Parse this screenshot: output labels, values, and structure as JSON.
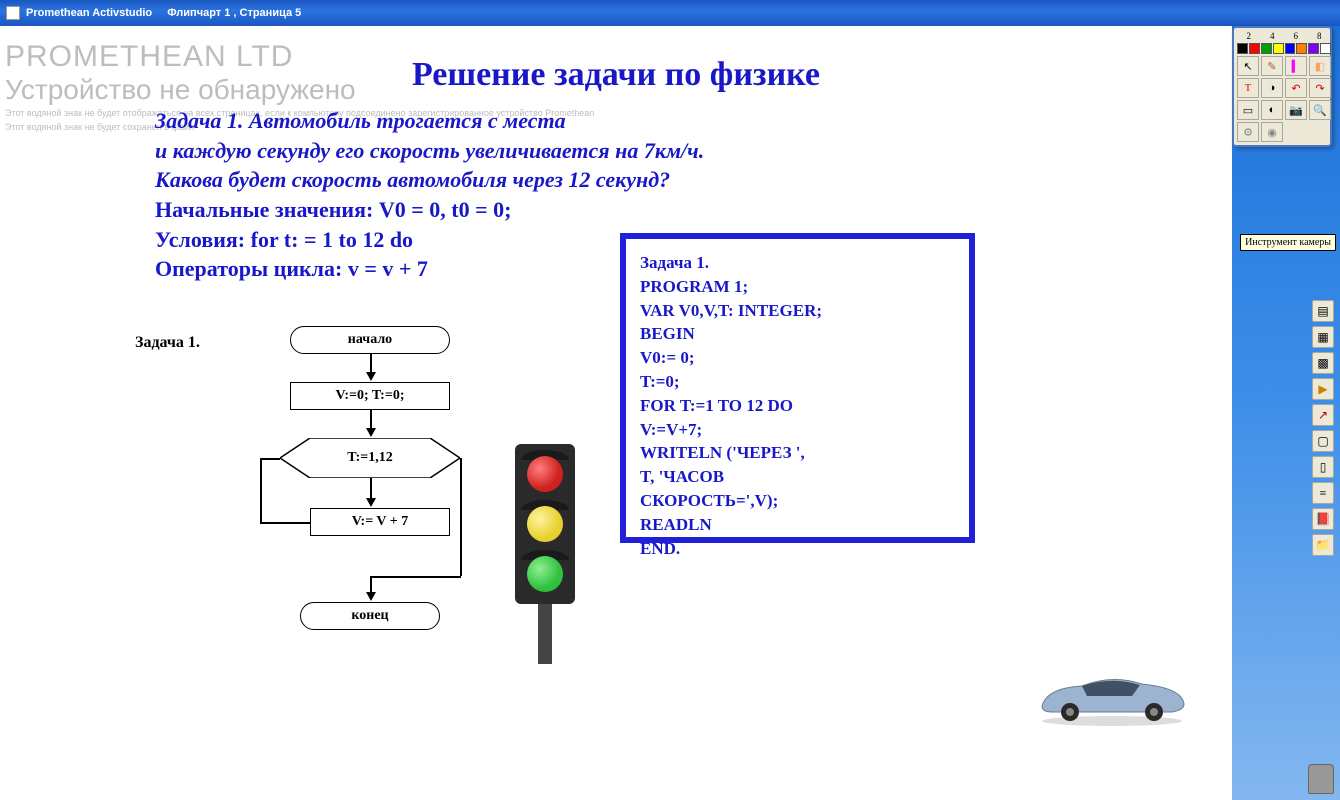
{
  "window": {
    "app_name": "Promethean Activstudio",
    "doc_title": "Флипчарт 1 , Страница 5"
  },
  "watermark": {
    "line1": "PROMETHEAN LTD",
    "line2": "Устройство не обнаружено",
    "line3": "Этот водяной знак не будет отображаться на всех страницах, если к компьютеру подсоединено зарегистрированное устройство Promethean",
    "line4": "Этот водяной знак не будет сохранен в файл"
  },
  "content": {
    "title": "Решение задачи по физике",
    "problem": {
      "l1": "Задача 1. Автомобиль трогается с места",
      "l2": "и каждую секунду его скорость увеличивается на 7км/ч.",
      "l3": "Какова будет скорость автомобиля через 12 секунд?",
      "l4": "Начальные значения: V0 = 0, t0 = 0;",
      "l5": "Условия: for t: = 1 to 12 do",
      "l6": "Операторы цикла: v = v + 7"
    },
    "flow_label": "Задача 1.",
    "flowchart": {
      "start": "начало",
      "init": "V:=0; T:=0;",
      "cond": "T:=1,12",
      "body": "V:= V + 7",
      "end": "конец"
    },
    "code": {
      "l1": "Задача 1.",
      "l2": "PROGRAM 1;",
      "l3": "VAR V0,V,T: INTEGER;",
      "l4": "BEGIN",
      "l5": "V0:= 0;",
      "l6": "T:=0;",
      "l7": "FOR T:=1 TO 12 DO",
      "l8": "V:=V+7;",
      "l9": "WRITELN ('ЧЕРЕЗ ',",
      "l10": "T, 'ЧАСОВ",
      "l11": "СКОРОСТЬ=',V);",
      "l12": "READLN",
      "l13": "END."
    }
  },
  "toolbox": {
    "numbers": [
      "2",
      "4",
      "6",
      "8"
    ],
    "colors": [
      "#000000",
      "#ff0000",
      "#00a000",
      "#ffff00",
      "#0000ff",
      "#ff8000",
      "#8000ff",
      "#ffffff"
    ],
    "tools": [
      {
        "name": "cursor-icon",
        "glyph": "↖",
        "color": "#000"
      },
      {
        "name": "pen-icon",
        "glyph": "✎",
        "color": "#a06030"
      },
      {
        "name": "highlighter-icon",
        "glyph": "▍",
        "color": "#ff00ff"
      },
      {
        "name": "eraser-icon",
        "glyph": "◧",
        "color": "#ffa060"
      },
      {
        "name": "text-icon",
        "glyph": "T",
        "color": "#ff0000"
      },
      {
        "name": "fill-icon",
        "glyph": "◑",
        "color": "#000"
      },
      {
        "name": "undo-icon",
        "glyph": "↶",
        "color": "#d00000"
      },
      {
        "name": "redo-icon",
        "glyph": "↷",
        "color": "#d00000"
      },
      {
        "name": "clear-icon",
        "glyph": "▭",
        "color": "#000"
      },
      {
        "name": "color-icon",
        "glyph": "◐",
        "color": "#000"
      },
      {
        "name": "camera-icon",
        "glyph": "📷",
        "color": "#555"
      },
      {
        "name": "zoom-icon",
        "glyph": "🔍",
        "color": "#555"
      },
      {
        "name": "config-icon",
        "glyph": "⚙",
        "color": "#888"
      },
      {
        "name": "disc-icon",
        "glyph": "◉",
        "color": "#888"
      }
    ]
  },
  "sidetools": [
    {
      "name": "pages-icon",
      "glyph": "▤"
    },
    {
      "name": "layers-icon",
      "glyph": "▦"
    },
    {
      "name": "grid-icon",
      "glyph": "▩"
    },
    {
      "name": "next-icon",
      "glyph": "▶",
      "color": "#d08000"
    },
    {
      "name": "arrow-icon",
      "glyph": "↗",
      "color": "#b00000"
    },
    {
      "name": "select-icon",
      "glyph": "▢"
    },
    {
      "name": "page-icon",
      "glyph": "▯"
    },
    {
      "name": "stack-icon",
      "glyph": "≡"
    },
    {
      "name": "book-icon",
      "glyph": "📕"
    },
    {
      "name": "folder-icon",
      "glyph": "📁"
    }
  ],
  "tooltip": "Инструмент камеры",
  "traffic": {
    "red": "#d02020",
    "yellow": "#e8d030",
    "green": "#30c040"
  },
  "car_color": "#9db4d0"
}
